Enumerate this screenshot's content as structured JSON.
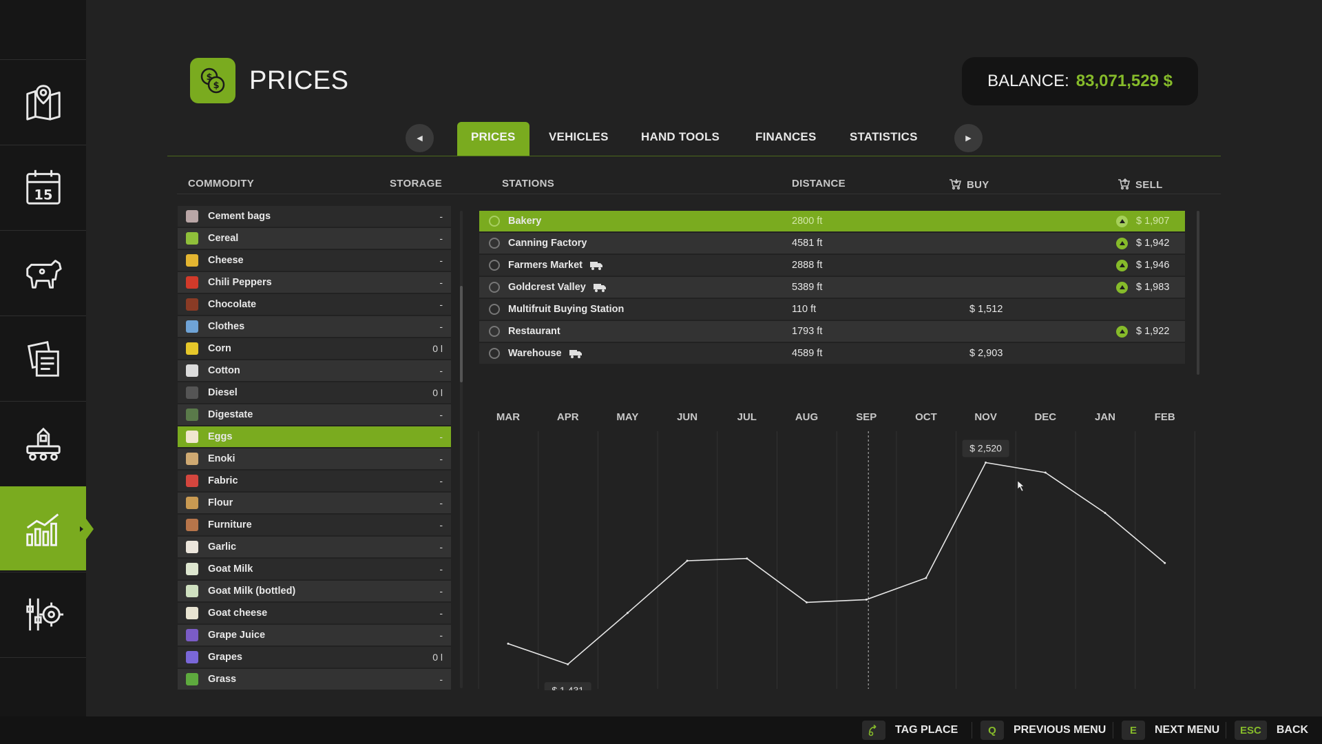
{
  "header": {
    "title": "PRICES",
    "balance_label": "BALANCE:",
    "balance_value": "83,071,529 $"
  },
  "sidebar": {
    "items": [
      {
        "icon": "map-icon"
      },
      {
        "icon": "calendar-icon",
        "label": "15"
      },
      {
        "icon": "animals-icon"
      },
      {
        "icon": "contracts-icon"
      },
      {
        "icon": "production-icon"
      },
      {
        "icon": "prices-chart-icon",
        "active": true
      },
      {
        "icon": "settings-icon"
      }
    ]
  },
  "tabs": [
    {
      "label": "PRICES",
      "active": true
    },
    {
      "label": "VEHICLES"
    },
    {
      "label": "HAND TOOLS"
    },
    {
      "label": "FINANCES"
    },
    {
      "label": "STATISTICS"
    }
  ],
  "columns": {
    "commodity": "COMMODITY",
    "storage": "STORAGE",
    "stations": "STATIONS",
    "distance": "DISTANCE",
    "buy": "BUY",
    "sell": "SELL"
  },
  "commodities": [
    {
      "name": "Cement bags",
      "storage": "-",
      "color": "#b9a6a6"
    },
    {
      "name": "Cereal",
      "storage": "-",
      "color": "#8fbf3a"
    },
    {
      "name": "Cheese",
      "storage": "-",
      "color": "#e3b531"
    },
    {
      "name": "Chili Peppers",
      "storage": "-",
      "color": "#d23a2a"
    },
    {
      "name": "Chocolate",
      "storage": "-",
      "color": "#8a3b25"
    },
    {
      "name": "Clothes",
      "storage": "-",
      "color": "#6fa3d6"
    },
    {
      "name": "Corn",
      "storage": "0 l",
      "color": "#e6c72a"
    },
    {
      "name": "Cotton",
      "storage": "-",
      "color": "#dcdcdc"
    },
    {
      "name": "Diesel",
      "storage": "0 l",
      "color": "#555555"
    },
    {
      "name": "Digestate",
      "storage": "-",
      "color": "#5a7a4a"
    },
    {
      "name": "Eggs",
      "storage": "-",
      "color": "#f1e6cf",
      "selected": true
    },
    {
      "name": "Enoki",
      "storage": "-",
      "color": "#cfa972"
    },
    {
      "name": "Fabric",
      "storage": "-",
      "color": "#d4463e"
    },
    {
      "name": "Flour",
      "storage": "-",
      "color": "#c99a52"
    },
    {
      "name": "Furniture",
      "storage": "-",
      "color": "#b7754a"
    },
    {
      "name": "Garlic",
      "storage": "-",
      "color": "#ece6dc"
    },
    {
      "name": "Goat Milk",
      "storage": "-",
      "color": "#dde6cf"
    },
    {
      "name": "Goat Milk (bottled)",
      "storage": "-",
      "color": "#cfe0c0"
    },
    {
      "name": "Goat cheese",
      "storage": "-",
      "color": "#e8e4d2"
    },
    {
      "name": "Grape Juice",
      "storage": "-",
      "color": "#7b5cc6"
    },
    {
      "name": "Grapes",
      "storage": "0 l",
      "color": "#7a67d8"
    },
    {
      "name": "Grass",
      "storage": "-",
      "color": "#5eaa3e"
    }
  ],
  "stations": [
    {
      "name": "Bakery",
      "distance": "2800 ft",
      "buy": "",
      "sell": "$ 1,907",
      "trend_up": true,
      "truck": false,
      "selected": true
    },
    {
      "name": "Canning Factory",
      "distance": "4581 ft",
      "buy": "",
      "sell": "$ 1,942",
      "trend_up": true,
      "truck": false
    },
    {
      "name": "Farmers Market",
      "distance": "2888 ft",
      "buy": "",
      "sell": "$ 1,946",
      "trend_up": true,
      "truck": true
    },
    {
      "name": "Goldcrest Valley",
      "distance": "5389 ft",
      "buy": "",
      "sell": "$ 1,983",
      "trend_up": true,
      "truck": true
    },
    {
      "name": "Multifruit Buying Station",
      "distance": "110 ft",
      "buy": "$ 1,512",
      "sell": "",
      "trend_up": false,
      "truck": false
    },
    {
      "name": "Restaurant",
      "distance": "1793 ft",
      "buy": "",
      "sell": "$ 1,922",
      "trend_up": true,
      "truck": false
    },
    {
      "name": "Warehouse",
      "distance": "4589 ft",
      "buy": "$ 2,903",
      "sell": "",
      "trend_up": false,
      "truck": true
    }
  ],
  "chart_data": {
    "type": "line",
    "categories": [
      "MAR",
      "APR",
      "MAY",
      "JUN",
      "JUL",
      "AUG",
      "SEP",
      "OCT",
      "NOV",
      "DEC",
      "JAN",
      "FEB"
    ],
    "series": [
      {
        "values": [
          1542,
          1431,
          1708,
          1990,
          2002,
          1765,
          1780,
          1897,
          2520,
          2466,
          2248,
          1978
        ]
      }
    ],
    "min_label": "$ 1,431",
    "max_label": "$ 2,520",
    "ylim": [
      1350,
      2600
    ],
    "current_month": "SEP",
    "line_color": "#e6e6e6",
    "grid": true
  },
  "hints": [
    {
      "key": "",
      "label": "TAG PLACE",
      "icon": "tag-place-icon"
    },
    {
      "key": "Q",
      "label": "PREVIOUS MENU"
    },
    {
      "key": "E",
      "label": "NEXT MENU"
    },
    {
      "key": "ESC",
      "label": "BACK"
    }
  ],
  "colors": {
    "accent": "#7aab1f",
    "balance": "#86bb2a",
    "background": "#222222",
    "sidebar": "#161616"
  }
}
